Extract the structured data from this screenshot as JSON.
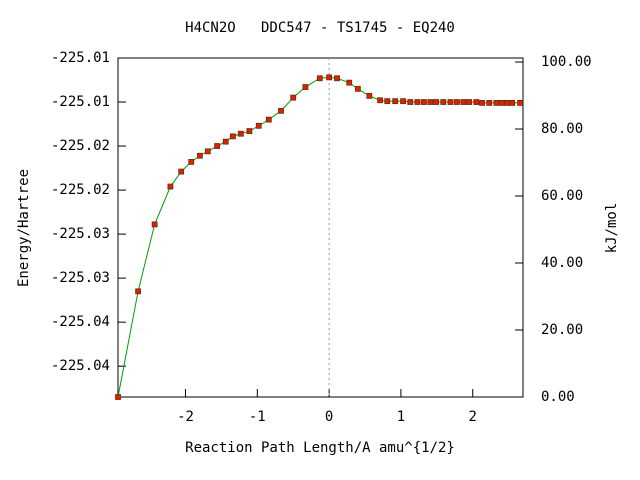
{
  "chart_data": {
    "type": "line",
    "title": "H4CN2O   DDC547 - TS1745 - EQ240",
    "x_label": "Reaction Path Length/A amu^{1/2}",
    "y_label": "Energy/Hartree",
    "y2_label": "kJ/mol",
    "xlim": [
      -2.94,
      2.7
    ],
    "xticks": [
      -2,
      -1,
      0,
      1,
      2
    ],
    "ylim": [
      -225.0435,
      -225.005
    ],
    "yticks": [
      {
        "value": -225.005,
        "label": "-225.01"
      },
      -225.01,
      {
        "value": -225.015,
        "label": "-225.02"
      },
      -225.02,
      {
        "value": -225.025,
        "label": "-225.03"
      },
      -225.03,
      {
        "value": -225.035,
        "label": "-225.04"
      },
      -225.04
    ],
    "y2lim": [
      0,
      101.19
    ],
    "y2ticks": [
      {
        "value": 0,
        "label": "0.00"
      },
      {
        "value": 20,
        "label": "20.00"
      },
      {
        "value": 40,
        "label": "40.00"
      },
      {
        "value": 60,
        "label": "60.00"
      },
      {
        "value": 80,
        "label": "80.00"
      },
      {
        "value": 100,
        "label": "100.00"
      }
    ],
    "vline": 0,
    "series": [
      {
        "color": "#00a000",
        "marker_color": "#e02000",
        "x": [
          -2.94,
          -2.66,
          -2.43,
          -2.21,
          -2.06,
          -1.92,
          -1.8,
          -1.69,
          -1.56,
          -1.44,
          -1.34,
          -1.23,
          -1.11,
          -0.98,
          -0.84,
          -0.67,
          -0.5,
          -0.33,
          -0.13,
          0,
          0.11,
          0.28,
          0.4,
          0.56,
          0.71,
          0.81,
          0.92,
          1.03,
          1.13,
          1.23,
          1.32,
          1.41,
          1.49,
          1.59,
          1.69,
          1.78,
          1.87,
          1.95,
          2.05,
          2.13,
          2.23,
          2.33,
          2.41,
          2.48,
          2.55,
          2.66
        ],
        "values": [
          -225.0435,
          -225.0315,
          -225.0239,
          -225.0196,
          -225.0179,
          -225.0168,
          -225.0161,
          -225.0156,
          -225.015,
          -225.0145,
          -225.0139,
          -225.0136,
          -225.0133,
          -225.0127,
          -225.012,
          -225.011,
          -225.0095,
          -225.0083,
          -225.0073,
          -225.0072,
          -225.0073,
          -225.0078,
          -225.0085,
          -225.0093,
          -225.0098,
          -225.0099,
          -225.0099,
          -225.0099,
          -225.01,
          -225.01,
          -225.01,
          -225.01,
          -225.01,
          -225.01,
          -225.01,
          -225.01,
          -225.01,
          -225.01,
          -225.01,
          -225.0101,
          -225.0101,
          -225.0101,
          -225.0101,
          -225.0101,
          -225.0101,
          -225.0101
        ]
      }
    ]
  }
}
